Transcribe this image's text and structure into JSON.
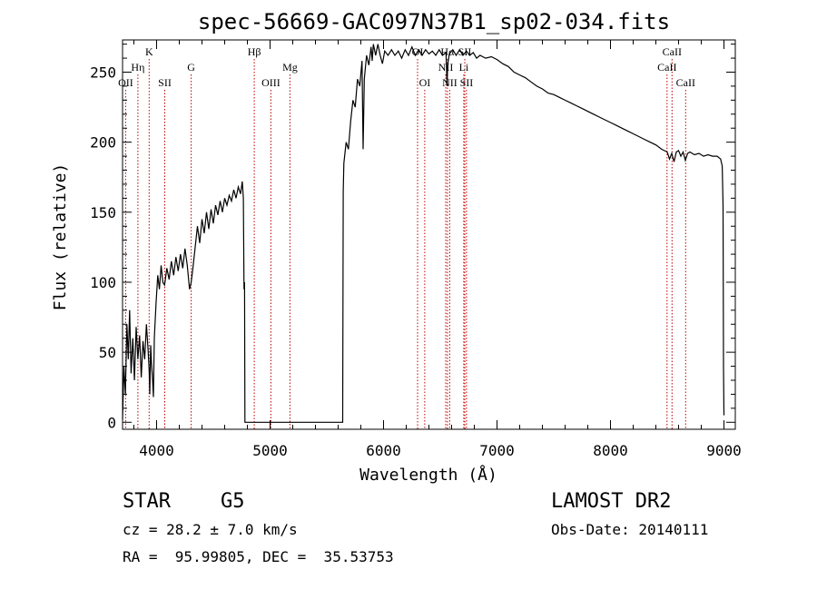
{
  "chart_data": {
    "type": "line",
    "title": "spec-56669-GAC097N37B1_sp02-034.fits",
    "xlabel": "Wavelength (Å)",
    "ylabel": "Flux (relative)",
    "xlim": [
      3700,
      9100
    ],
    "ylim": [
      -5,
      273
    ],
    "x_ticks": [
      4000,
      5000,
      6000,
      7000,
      8000,
      9000
    ],
    "y_ticks": [
      0,
      50,
      100,
      150,
      200,
      250
    ],
    "series": [
      {
        "name": "flux",
        "points": [
          [
            3700,
            2
          ],
          [
            3712,
            40
          ],
          [
            3725,
            20
          ],
          [
            3738,
            70
          ],
          [
            3750,
            45
          ],
          [
            3762,
            80
          ],
          [
            3775,
            35
          ],
          [
            3790,
            60
          ],
          [
            3805,
            30
          ],
          [
            3820,
            68
          ],
          [
            3835,
            45
          ],
          [
            3850,
            62
          ],
          [
            3865,
            32
          ],
          [
            3880,
            58
          ],
          [
            3895,
            45
          ],
          [
            3910,
            70
          ],
          [
            3925,
            52
          ],
          [
            3935,
            36
          ],
          [
            3940,
            20
          ],
          [
            3948,
            55
          ],
          [
            3955,
            42
          ],
          [
            3965,
            30
          ],
          [
            3972,
            18
          ],
          [
            3980,
            60
          ],
          [
            3995,
            85
          ],
          [
            4010,
            105
          ],
          [
            4025,
            95
          ],
          [
            4040,
            112
          ],
          [
            4055,
            100
          ],
          [
            4070,
            98
          ],
          [
            4090,
            110
          ],
          [
            4110,
            102
          ],
          [
            4130,
            115
          ],
          [
            4150,
            105
          ],
          [
            4170,
            118
          ],
          [
            4190,
            108
          ],
          [
            4210,
            120
          ],
          [
            4230,
            110
          ],
          [
            4250,
            124
          ],
          [
            4270,
            112
          ],
          [
            4290,
            95
          ],
          [
            4305,
            100
          ],
          [
            4320,
            110
          ],
          [
            4340,
            125
          ],
          [
            4360,
            140
          ],
          [
            4380,
            128
          ],
          [
            4400,
            145
          ],
          [
            4420,
            135
          ],
          [
            4440,
            150
          ],
          [
            4460,
            138
          ],
          [
            4480,
            152
          ],
          [
            4500,
            142
          ],
          [
            4520,
            155
          ],
          [
            4540,
            148
          ],
          [
            4560,
            158
          ],
          [
            4580,
            150
          ],
          [
            4600,
            160
          ],
          [
            4620,
            155
          ],
          [
            4640,
            162
          ],
          [
            4660,
            158
          ],
          [
            4680,
            166
          ],
          [
            4700,
            160
          ],
          [
            4720,
            168
          ],
          [
            4740,
            163
          ],
          [
            4755,
            172
          ],
          [
            4765,
            160
          ],
          [
            4770,
            95
          ],
          [
            4775,
            100
          ],
          [
            4778,
            0
          ],
          [
            4785,
            0
          ],
          [
            5620,
            0
          ],
          [
            5640,
            0
          ],
          [
            5645,
            165
          ],
          [
            5650,
            185
          ],
          [
            5670,
            200
          ],
          [
            5690,
            195
          ],
          [
            5710,
            215
          ],
          [
            5730,
            230
          ],
          [
            5750,
            225
          ],
          [
            5770,
            245
          ],
          [
            5790,
            240
          ],
          [
            5810,
            258
          ],
          [
            5820,
            195
          ],
          [
            5830,
            245
          ],
          [
            5850,
            262
          ],
          [
            5870,
            255
          ],
          [
            5890,
            268
          ],
          [
            5900,
            258
          ],
          [
            5910,
            270
          ],
          [
            5930,
            262
          ],
          [
            5950,
            270
          ],
          [
            5970,
            262
          ],
          [
            5990,
            256
          ],
          [
            6010,
            265
          ],
          [
            6040,
            262
          ],
          [
            6070,
            266
          ],
          [
            6100,
            262
          ],
          [
            6130,
            265
          ],
          [
            6160,
            260
          ],
          [
            6190,
            266
          ],
          [
            6220,
            262
          ],
          [
            6250,
            268
          ],
          [
            6280,
            262
          ],
          [
            6310,
            266
          ],
          [
            6340,
            262
          ],
          [
            6370,
            266
          ],
          [
            6400,
            263
          ],
          [
            6430,
            265
          ],
          [
            6460,
            262
          ],
          [
            6490,
            266
          ],
          [
            6520,
            262
          ],
          [
            6550,
            264
          ],
          [
            6560,
            240
          ],
          [
            6565,
            255
          ],
          [
            6580,
            263
          ],
          [
            6610,
            266
          ],
          [
            6640,
            262
          ],
          [
            6670,
            266
          ],
          [
            6700,
            262
          ],
          [
            6730,
            265
          ],
          [
            6760,
            262
          ],
          [
            6790,
            264
          ],
          [
            6820,
            260
          ],
          [
            6850,
            262
          ],
          [
            6900,
            260
          ],
          [
            6950,
            261
          ],
          [
            7000,
            259
          ],
          [
            7050,
            256
          ],
          [
            7100,
            254
          ],
          [
            7150,
            250
          ],
          [
            7200,
            248
          ],
          [
            7250,
            246
          ],
          [
            7300,
            243
          ],
          [
            7350,
            240
          ],
          [
            7400,
            238
          ],
          [
            7450,
            235
          ],
          [
            7500,
            234
          ],
          [
            7550,
            232
          ],
          [
            7600,
            230
          ],
          [
            7650,
            228
          ],
          [
            7700,
            226
          ],
          [
            7750,
            224
          ],
          [
            7800,
            222
          ],
          [
            7850,
            220
          ],
          [
            7900,
            218
          ],
          [
            7950,
            216
          ],
          [
            8000,
            214
          ],
          [
            8050,
            212
          ],
          [
            8100,
            210
          ],
          [
            8150,
            208
          ],
          [
            8200,
            206
          ],
          [
            8250,
            204
          ],
          [
            8300,
            202
          ],
          [
            8350,
            200
          ],
          [
            8400,
            198
          ],
          [
            8450,
            195
          ],
          [
            8500,
            193
          ],
          [
            8520,
            188
          ],
          [
            8540,
            192
          ],
          [
            8560,
            186
          ],
          [
            8580,
            193
          ],
          [
            8600,
            194
          ],
          [
            8620,
            190
          ],
          [
            8640,
            193
          ],
          [
            8660,
            187
          ],
          [
            8680,
            192
          ],
          [
            8700,
            193
          ],
          [
            8740,
            191
          ],
          [
            8780,
            192
          ],
          [
            8820,
            190
          ],
          [
            8860,
            191
          ],
          [
            8900,
            190
          ],
          [
            8940,
            190
          ],
          [
            8970,
            188
          ],
          [
            8985,
            183
          ],
          [
            8992,
            155
          ],
          [
            8996,
            40
          ],
          [
            9000,
            5
          ]
        ]
      }
    ],
    "lines": [
      {
        "label": "Hη",
        "x": 3835,
        "row": 2
      },
      {
        "label": "OII",
        "x": 3727,
        "row": 3
      },
      {
        "label": "K",
        "x": 3934,
        "row": 1
      },
      {
        "label": "SII",
        "x": 4072,
        "row": 3
      },
      {
        "label": "G",
        "x": 4305,
        "row": 2
      },
      {
        "label": "Hβ",
        "x": 4861,
        "row": 1
      },
      {
        "label": "OIII",
        "x": 5007,
        "row": 3
      },
      {
        "label": "Mg",
        "x": 5175,
        "row": 2
      },
      {
        "label": "OI",
        "x": 6300,
        "row": 1
      },
      {
        "label": "OI",
        "x": 6363,
        "row": 3
      },
      {
        "label": "Hα",
        "x": 6563,
        "row": 1
      },
      {
        "label": "NII",
        "x": 6548,
        "row": 2
      },
      {
        "label": "NII",
        "x": 6583,
        "row": 3
      },
      {
        "label": "Li",
        "x": 6707,
        "row": 2
      },
      {
        "label": "SII",
        "x": 6716,
        "row": 1
      },
      {
        "label": "SII",
        "x": 6731,
        "row": 3
      },
      {
        "label": "CaII",
        "x": 8498,
        "row": 2
      },
      {
        "label": "CaII",
        "x": 8542,
        "row": 1
      },
      {
        "label": "CaII",
        "x": 8662,
        "row": 3
      }
    ]
  },
  "info": {
    "class": "STAR",
    "subclass": "G5",
    "survey": "LAMOST DR2",
    "cz": "cz = 28.2 ± 7.0 km/s",
    "obs_date": "Obs-Date: 20140111",
    "coords": "RA =  95.99805, DEC =  35.53753"
  },
  "colors": {
    "line_marker": "#c00000",
    "spectrum": "#000000"
  }
}
